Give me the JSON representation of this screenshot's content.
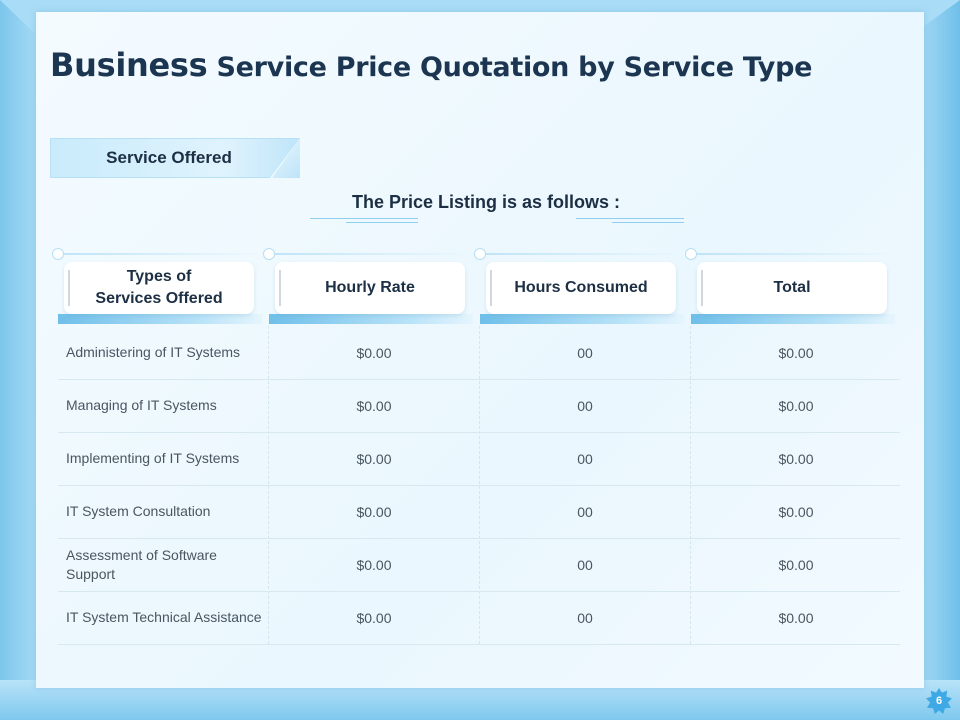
{
  "title": {
    "first_word": "Business",
    "rest": " Service Price Quotation by Service Type"
  },
  "tag": {
    "label": "Service Offered"
  },
  "subtitle": "The Price Listing is as follows :",
  "table": {
    "headers": [
      "Types of\nServices Offered",
      "Hourly Rate",
      "Hours Consumed",
      "Total"
    ],
    "rows": [
      {
        "service": "Administering  of IT Systems",
        "rate": "$0.00",
        "hours": "00",
        "total": "$0.00"
      },
      {
        "service": "Managing of IT Systems",
        "rate": "$0.00",
        "hours": "00",
        "total": "$0.00"
      },
      {
        "service": "Implementing of IT Systems",
        "rate": "$0.00",
        "hours": "00",
        "total": "$0.00"
      },
      {
        "service": "IT System Consultation",
        "rate": "$0.00",
        "hours": "00",
        "total": "$0.00"
      },
      {
        "service": "Assessment of Software Support",
        "rate": "$0.00",
        "hours": "00",
        "total": "$0.00"
      },
      {
        "service": "IT System Technical Assistance",
        "rate": "$0.00",
        "hours": "00",
        "total": "$0.00"
      }
    ]
  },
  "page_number": "6",
  "colors": {
    "accent": "#3fa9e6",
    "text": "#1c2f44"
  }
}
